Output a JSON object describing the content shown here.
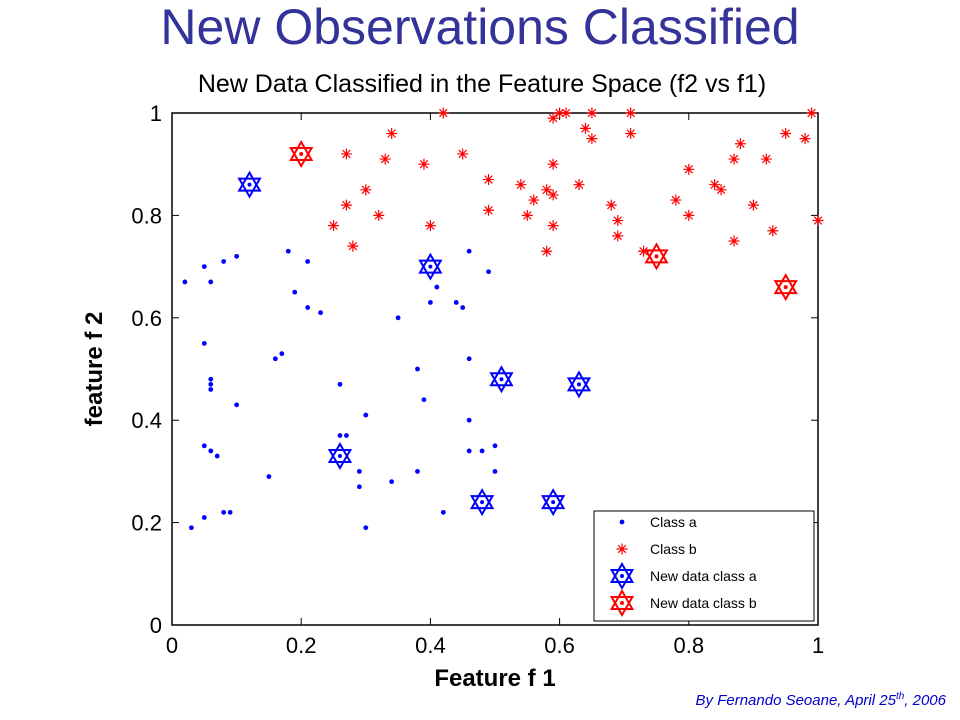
{
  "slide": {
    "title": "New Observations Classified",
    "credit_main": "By Fernando Seoane, April 25",
    "credit_sup": "th",
    "credit_tail": ", 2006"
  },
  "colors": {
    "title": "#333399",
    "credit": "#0000cc",
    "class_a": "#0000ff",
    "class_b": "#ff0000"
  },
  "chart_data": {
    "type": "scatter",
    "title": "New Data Classified in the Feature Space (f2 vs f1)",
    "xlabel": "Feature f 1",
    "ylabel": "feature f 2",
    "xlim": [
      0,
      1
    ],
    "ylim": [
      0,
      1
    ],
    "xticks": [
      "0",
      "0.2",
      "0.4",
      "0.6",
      "0.8",
      "1"
    ],
    "yticks": [
      "0",
      "0.2",
      "0.4",
      "0.6",
      "0.8",
      "1"
    ],
    "grid": false,
    "legend_position": "bottom-right",
    "series": [
      {
        "name": "Class a",
        "marker": "dot",
        "color": "#0000ff",
        "points": [
          [
            0.02,
            0.67
          ],
          [
            0.03,
            0.19
          ],
          [
            0.05,
            0.55
          ],
          [
            0.05,
            0.7
          ],
          [
            0.05,
            0.35
          ],
          [
            0.05,
            0.21
          ],
          [
            0.06,
            0.67
          ],
          [
            0.06,
            0.47
          ],
          [
            0.06,
            0.46
          ],
          [
            0.06,
            0.48
          ],
          [
            0.06,
            0.34
          ],
          [
            0.07,
            0.33
          ],
          [
            0.08,
            0.22
          ],
          [
            0.09,
            0.22
          ],
          [
            0.08,
            0.71
          ],
          [
            0.1,
            0.43
          ],
          [
            0.1,
            0.72
          ],
          [
            0.15,
            0.29
          ],
          [
            0.16,
            0.52
          ],
          [
            0.17,
            0.53
          ],
          [
            0.18,
            0.73
          ],
          [
            0.19,
            0.65
          ],
          [
            0.21,
            0.62
          ],
          [
            0.21,
            0.71
          ],
          [
            0.23,
            0.61
          ],
          [
            0.26,
            0.47
          ],
          [
            0.26,
            0.37
          ],
          [
            0.27,
            0.37
          ],
          [
            0.29,
            0.3
          ],
          [
            0.29,
            0.27
          ],
          [
            0.3,
            0.19
          ],
          [
            0.3,
            0.41
          ],
          [
            0.34,
            0.28
          ],
          [
            0.35,
            0.6
          ],
          [
            0.38,
            0.3
          ],
          [
            0.38,
            0.5
          ],
          [
            0.39,
            0.44
          ],
          [
            0.4,
            0.63
          ],
          [
            0.41,
            0.66
          ],
          [
            0.42,
            0.22
          ],
          [
            0.44,
            0.63
          ],
          [
            0.45,
            0.62
          ],
          [
            0.46,
            0.52
          ],
          [
            0.46,
            0.4
          ],
          [
            0.46,
            0.34
          ],
          [
            0.46,
            0.73
          ],
          [
            0.48,
            0.34
          ],
          [
            0.49,
            0.69
          ],
          [
            0.5,
            0.3
          ],
          [
            0.5,
            0.35
          ]
        ]
      },
      {
        "name": "Class b",
        "marker": "asterisk",
        "color": "#ff0000",
        "points": [
          [
            0.25,
            0.78
          ],
          [
            0.27,
            0.82
          ],
          [
            0.27,
            0.92
          ],
          [
            0.28,
            0.74
          ],
          [
            0.3,
            0.85
          ],
          [
            0.32,
            0.8
          ],
          [
            0.33,
            0.91
          ],
          [
            0.34,
            0.96
          ],
          [
            0.39,
            0.9
          ],
          [
            0.4,
            0.78
          ],
          [
            0.42,
            1.0
          ],
          [
            0.45,
            0.92
          ],
          [
            0.49,
            0.87
          ],
          [
            0.49,
            0.81
          ],
          [
            0.54,
            0.86
          ],
          [
            0.55,
            0.8
          ],
          [
            0.56,
            0.83
          ],
          [
            0.58,
            0.85
          ],
          [
            0.58,
            0.73
          ],
          [
            0.59,
            0.78
          ],
          [
            0.59,
            0.84
          ],
          [
            0.59,
            0.9
          ],
          [
            0.59,
            0.99
          ],
          [
            0.6,
            1.0
          ],
          [
            0.61,
            1.0
          ],
          [
            0.63,
            0.86
          ],
          [
            0.64,
            0.97
          ],
          [
            0.65,
            0.95
          ],
          [
            0.65,
            1.0
          ],
          [
            0.68,
            0.82
          ],
          [
            0.69,
            0.79
          ],
          [
            0.69,
            0.76
          ],
          [
            0.71,
            1.0
          ],
          [
            0.71,
            0.96
          ],
          [
            0.73,
            0.73
          ],
          [
            0.78,
            0.83
          ],
          [
            0.8,
            0.89
          ],
          [
            0.8,
            0.8
          ],
          [
            0.84,
            0.86
          ],
          [
            0.85,
            0.85
          ],
          [
            0.87,
            0.91
          ],
          [
            0.87,
            0.75
          ],
          [
            0.88,
            0.94
          ],
          [
            0.9,
            0.82
          ],
          [
            0.92,
            0.91
          ],
          [
            0.93,
            0.77
          ],
          [
            0.95,
            0.96
          ],
          [
            0.98,
            0.95
          ],
          [
            0.99,
            1.0
          ],
          [
            1.0,
            0.79
          ]
        ]
      },
      {
        "name": "New data class a",
        "marker": "hexagram",
        "color": "#0000ff",
        "points": [
          [
            0.12,
            0.86
          ],
          [
            0.26,
            0.33
          ],
          [
            0.4,
            0.7
          ],
          [
            0.51,
            0.48
          ],
          [
            0.48,
            0.24
          ],
          [
            0.59,
            0.24
          ],
          [
            0.63,
            0.47
          ]
        ]
      },
      {
        "name": "New data class b",
        "marker": "hexagram",
        "color": "#ff0000",
        "points": [
          [
            0.2,
            0.92
          ],
          [
            0.75,
            0.72
          ],
          [
            0.95,
            0.66
          ]
        ]
      }
    ]
  }
}
